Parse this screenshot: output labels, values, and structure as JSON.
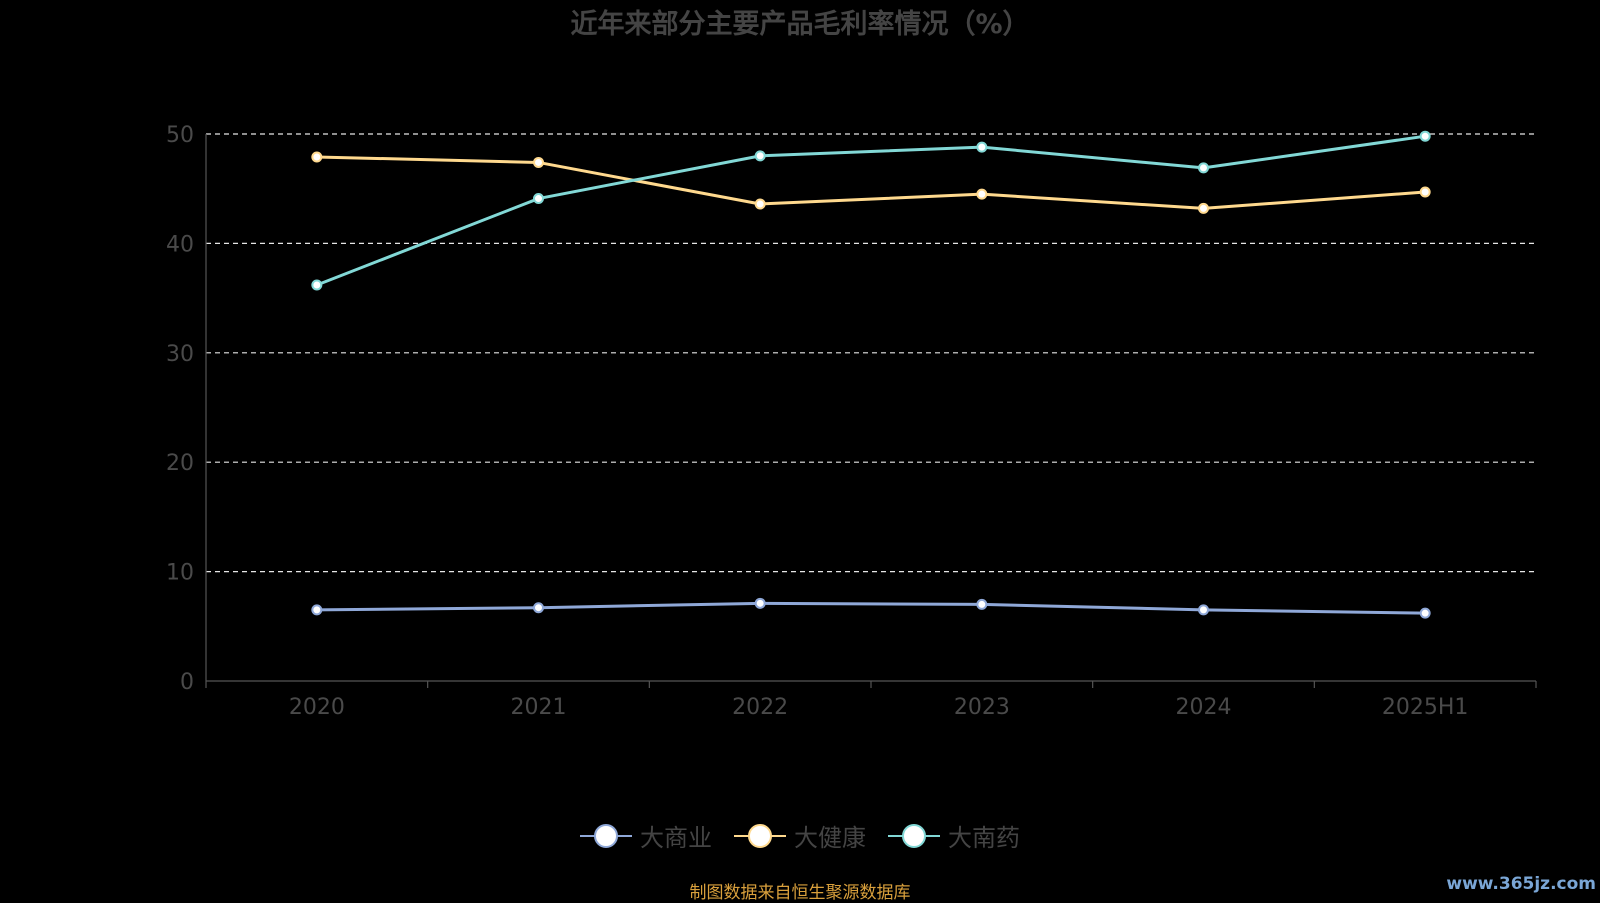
{
  "chart_data": {
    "type": "line",
    "title": "近年来部分主要产品毛利率情况（%）",
    "categories": [
      "2020",
      "2021",
      "2022",
      "2023",
      "2024",
      "2025H1"
    ],
    "ylim": [
      0,
      50
    ],
    "yticks": [
      0,
      10,
      20,
      30,
      40,
      50
    ],
    "grid": true,
    "legend_position": "bottom",
    "series": [
      {
        "name": "大商业",
        "color": "#8fa8d8",
        "values": [
          6.5,
          6.7,
          7.1,
          7.0,
          6.5,
          6.2
        ]
      },
      {
        "name": "大健康",
        "color": "#ffd98e",
        "values": [
          47.9,
          47.4,
          43.6,
          44.5,
          43.2,
          44.7
        ]
      },
      {
        "name": "大南药",
        "color": "#82d8d6",
        "values": [
          36.2,
          44.1,
          48.0,
          48.8,
          46.9,
          49.8
        ]
      }
    ]
  },
  "source_note": "制图数据来自恒生聚源数据库",
  "watermark": "www.365jz.com"
}
